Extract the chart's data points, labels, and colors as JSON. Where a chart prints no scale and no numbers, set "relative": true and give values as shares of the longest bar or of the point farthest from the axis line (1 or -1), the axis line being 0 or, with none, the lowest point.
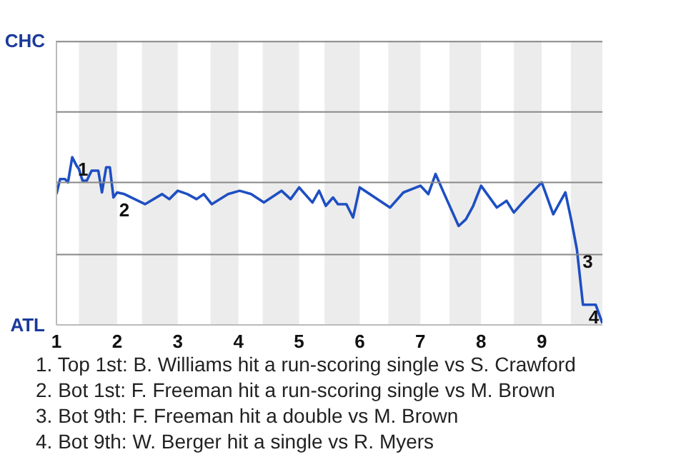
{
  "chart_data": {
    "type": "line",
    "relative": true,
    "x": [
      1.0,
      1.06,
      1.14,
      1.19,
      1.26,
      1.33,
      1.37,
      1.43,
      1.5,
      1.58,
      1.69,
      1.75,
      1.82,
      1.88,
      1.94,
      2.0,
      2.12,
      2.46,
      2.74,
      2.86,
      3.0,
      3.16,
      3.31,
      3.43,
      3.56,
      3.83,
      4.02,
      4.21,
      4.42,
      4.71,
      4.86,
      5.0,
      5.22,
      5.33,
      5.44,
      5.56,
      5.64,
      5.78,
      5.89,
      6.0,
      6.5,
      6.72,
      7.0,
      7.13,
      7.25,
      7.37,
      7.63,
      7.75,
      7.87,
      8.0,
      8.26,
      8.42,
      8.54,
      8.71,
      9.0,
      9.19,
      9.39,
      9.49,
      9.58,
      9.68,
      9.89,
      10.0
    ],
    "series": [
      {
        "color": "#1e4fc2",
        "values": [
          0.78,
          0.87,
          0.87,
          0.85,
          1.0,
          0.95,
          0.93,
          0.86,
          0.86,
          0.92,
          0.92,
          0.79,
          0.94,
          0.94,
          0.76,
          0.79,
          0.78,
          0.72,
          0.78,
          0.75,
          0.8,
          0.78,
          0.75,
          0.78,
          0.72,
          0.78,
          0.8,
          0.78,
          0.73,
          0.8,
          0.75,
          0.82,
          0.73,
          0.8,
          0.71,
          0.76,
          0.72,
          0.72,
          0.64,
          0.82,
          0.7,
          0.79,
          0.83,
          0.78,
          0.9,
          0.8,
          0.59,
          0.63,
          0.71,
          0.83,
          0.7,
          0.74,
          0.67,
          0.74,
          0.85,
          0.66,
          0.79,
          0.62,
          0.45,
          0.12,
          0.12,
          0.01
        ]
      }
    ],
    "xlim": [
      1,
      10
    ],
    "xticks": [
      1,
      2,
      3,
      4,
      5,
      6,
      7,
      8,
      9
    ],
    "marker": "none",
    "line_style": "solid",
    "ref_lines": [
      {
        "axis": "y",
        "value": 0.42,
        "color": "#888888"
      },
      {
        "axis": "y",
        "value": 0.85,
        "color": "#888888"
      },
      {
        "axis": "y",
        "value": 1.27,
        "color": "#888888"
      },
      {
        "axis": "y",
        "value": 1.69,
        "color": "#888888"
      }
    ],
    "bands": [
      {
        "axis": "x",
        "from": 1.37,
        "to": 2,
        "color": "#ececec"
      },
      {
        "axis": "x",
        "from": 2.41,
        "to": 3,
        "color": "#ececec"
      },
      {
        "axis": "x",
        "from": 3.54,
        "to": 4,
        "color": "#ececec"
      },
      {
        "axis": "x",
        "from": 4.4,
        "to": 5,
        "color": "#ececec"
      },
      {
        "axis": "x",
        "from": 5.42,
        "to": 6,
        "color": "#ececec"
      },
      {
        "axis": "x",
        "from": 6.47,
        "to": 7,
        "color": "#ececec"
      },
      {
        "axis": "x",
        "from": 7.48,
        "to": 8,
        "color": "#ececec"
      },
      {
        "axis": "x",
        "from": 8.54,
        "to": 9,
        "color": "#ececec"
      },
      {
        "axis": "x",
        "from": 9.48,
        "to": 10,
        "color": "#ececec"
      }
    ],
    "annotations": [
      "CHC",
      "ATL",
      {
        "text": "1",
        "x": 1.26,
        "y": 1.0
      },
      {
        "text": "2",
        "x": 1.94,
        "y": 0.76
      },
      {
        "text": "3",
        "x": 9.58,
        "y": 0.45
      },
      {
        "text": "4",
        "x": 9.68,
        "y": 0.12
      },
      "1. Top 1st: B. Williams hit a run-scoring single vs S. Crawford",
      "2. Bot 1st: F. Freeman hit a run-scoring single vs M. Brown",
      "3. Bot 9th: F. Freeman hit a double vs M. Brown",
      "4. Bot 9th: W. Berger hit a single vs R. Myers"
    ]
  }
}
